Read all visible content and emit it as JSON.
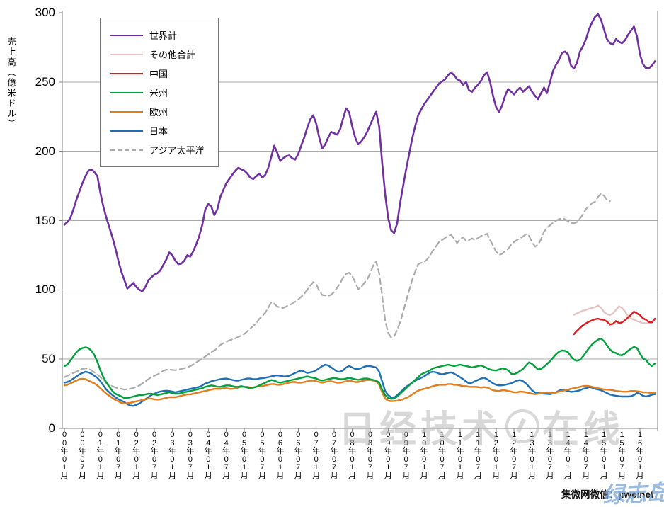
{
  "y_axis": {
    "title": "売上高（億米ドル）",
    "ticks": [
      300,
      250,
      200,
      150,
      100,
      50,
      0
    ]
  },
  "footer": {
    "credit_text": "集微网微信：jiweinet",
    "signature": "绿志岛"
  },
  "watermark": {
    "left": "日经技术",
    "right": "在线",
    "icon": "circle-logo"
  },
  "chart_data": {
    "type": "line",
    "title": "",
    "xlabel": "",
    "ylabel": "売上高（億米ドル）",
    "ylim": [
      0,
      300
    ],
    "grid": "horizontal",
    "legend_position": "upper-left-box",
    "x_unit": "month",
    "x_start": "2000-01",
    "x_tick_labels": [
      "00年01月",
      "00年07月",
      "01年01月",
      "01年07月",
      "02年01月",
      "02年07月",
      "03年01月",
      "03年07月",
      "04年01月",
      "04年07月",
      "05年01月",
      "05年07月",
      "06年01月",
      "06年07月",
      "07年01月",
      "07年07月",
      "08年01月",
      "08年07月",
      "09年01月",
      "09年07月",
      "10年01月",
      "10年07月",
      "11年01月",
      "11年07月",
      "12年01月",
      "12年07月",
      "13年01月",
      "13年07月",
      "14年01月",
      "14年07月",
      "15年01月",
      "15年07月",
      "16年01月"
    ],
    "series": [
      {
        "name": "世界計",
        "name_en": "world-total",
        "color": "#7030A0",
        "dash": "solid",
        "width": 2.6,
        "start_index": 0,
        "values": [
          147,
          149,
          152,
          158,
          165,
          171,
          177,
          182,
          186,
          187,
          185,
          182,
          170,
          160,
          152,
          145,
          138,
          130,
          121,
          113,
          107,
          101,
          103,
          105,
          102,
          100,
          99,
          102,
          107,
          109,
          111,
          112,
          114,
          118,
          122,
          127,
          125,
          121,
          118.5,
          119,
          121,
          125,
          124,
          128,
          133,
          139,
          147,
          158,
          162,
          160,
          154,
          158,
          167,
          172,
          177,
          180,
          183,
          186,
          188,
          187,
          186,
          184,
          181,
          180,
          182,
          184,
          181,
          183,
          188,
          196,
          204,
          199,
          193,
          195,
          196.5,
          197,
          195,
          194,
          198,
          204,
          210,
          217,
          223,
          226,
          220,
          210,
          202,
          205,
          210,
          214,
          213,
          212,
          216,
          224,
          231,
          228,
          218,
          210,
          205,
          207,
          210,
          214,
          219,
          224,
          228.5,
          218,
          192,
          169,
          152,
          143,
          141,
          148,
          163,
          175,
          187,
          198,
          209,
          218,
          226,
          230,
          234,
          237,
          240,
          243,
          246,
          249,
          250.5,
          252,
          255,
          257,
          255,
          252,
          251,
          248,
          250,
          244,
          243,
          246,
          248,
          251,
          255,
          257,
          250,
          240,
          232,
          228.3,
          233,
          240,
          245,
          243,
          241,
          244,
          246,
          243,
          245,
          247,
          243,
          240,
          237.7,
          242,
          246,
          242,
          250,
          258,
          262.4,
          266,
          271,
          272,
          270,
          262,
          259.8,
          264,
          272,
          276,
          281,
          288,
          293,
          297,
          299,
          295,
          288,
          281,
          278,
          277,
          281,
          279,
          278,
          280,
          284,
          287,
          290,
          283,
          270,
          263,
          260,
          260,
          262,
          265
        ]
      },
      {
        "name": "その他合計",
        "name_en": "others-total",
        "color": "#E5C2C0",
        "dash": "solid",
        "width": 2.3,
        "start_index": 170,
        "values": [
          82,
          83,
          84,
          85,
          85.5,
          86.3,
          86.9,
          87.5,
          88.6,
          87,
          84,
          82.5,
          81.8,
          83,
          85.5,
          88.1,
          87,
          84.5,
          81,
          79.5,
          78.5,
          77.5,
          76.7,
          76,
          75.8,
          76,
          76.5,
          79
        ]
      },
      {
        "name": "中国",
        "name_en": "china",
        "color": "#DE1B21",
        "dash": "solid",
        "width": 2.4,
        "start_index": 170,
        "values": [
          68,
          70.5,
          72.5,
          74.5,
          75.8,
          77,
          78,
          78.8,
          79.2,
          78.5,
          78.4,
          77,
          75,
          75.5,
          77.5,
          76,
          76.5,
          78,
          80,
          82,
          84.3,
          83,
          81.8,
          79.5,
          78.4,
          76.7,
          76.5,
          79.2
        ]
      },
      {
        "name": "米州",
        "name_en": "americas",
        "color": "#00A13C",
        "dash": "solid",
        "width": 2.4,
        "start_index": 0,
        "values": [
          45,
          46,
          49,
          52,
          55,
          57,
          58,
          58.5,
          58,
          56,
          53,
          48,
          42,
          37,
          33,
          30,
          27,
          25,
          24,
          23,
          22,
          22,
          22.4,
          23,
          23.5,
          24,
          24,
          24.5,
          25,
          25,
          24.5,
          24,
          24.5,
          25,
          25.5,
          26,
          25.5,
          25,
          25,
          25.5,
          26,
          26.5,
          27,
          27.5,
          28,
          28.5,
          29,
          30,
          30.5,
          31,
          30.7,
          30,
          30,
          30.5,
          31,
          31,
          30.5,
          30,
          30,
          30.5,
          30,
          29.5,
          29,
          29.5,
          30,
          31,
          32,
          33,
          34,
          34.9,
          34.5,
          33.5,
          33,
          33.5,
          34,
          34.5,
          35,
          35.5,
          36,
          36.5,
          37,
          37.5,
          37,
          36.5,
          36,
          35,
          34.5,
          35,
          35.5,
          36,
          36.5,
          36,
          35.5,
          35.5,
          36,
          36.5,
          36,
          35.5,
          35,
          35.5,
          36,
          36,
          35.5,
          35,
          34.5,
          33,
          28,
          24,
          22,
          21.3,
          21.5,
          23,
          25,
          27,
          29,
          31,
          33,
          35,
          37,
          39,
          40,
          41,
          42,
          43.4,
          44,
          44.5,
          45,
          45.5,
          46,
          45.5,
          45,
          45.5,
          46,
          45.5,
          45.1,
          44.5,
          44,
          44.5,
          45,
          45.5,
          44.5,
          43.5,
          42.5,
          42,
          41.8,
          42.5,
          43.4,
          43,
          42,
          39.5,
          39.2,
          40,
          41.5,
          43,
          45.5,
          47.7,
          46.5,
          44.5,
          42.6,
          43,
          44.5,
          46.5,
          48.5,
          51,
          53.5,
          55.4,
          56.2,
          56,
          55,
          52,
          49.5,
          48.9,
          49.5,
          52,
          55,
          58,
          60.5,
          62.5,
          64,
          64.8,
          63,
          60,
          57,
          55,
          54.5,
          53,
          52.8,
          54,
          56,
          57.5,
          58.8,
          58,
          54,
          50.5,
          49.4,
          46.5,
          45.1,
          46.9
        ]
      },
      {
        "name": "欧州",
        "name_en": "europe",
        "color": "#E07D1E",
        "dash": "solid",
        "width": 2.4,
        "start_index": 0,
        "values": [
          31,
          31.5,
          32.5,
          33.5,
          34.5,
          35.5,
          35.8,
          35.5,
          34.5,
          33.5,
          32.5,
          31,
          29,
          27,
          25,
          23.5,
          22,
          20.5,
          19.5,
          18.4,
          18,
          18.2,
          18.5,
          19,
          19.5,
          20,
          20.5,
          21,
          21.5,
          21.5,
          21,
          20.8,
          21,
          21.5,
          22,
          22.5,
          22.5,
          22.5,
          23,
          23.5,
          24,
          24.5,
          24.5,
          25,
          25.5,
          26,
          26.5,
          27,
          27.5,
          28,
          28.5,
          28.5,
          28.5,
          29,
          29,
          28.5,
          28.5,
          29,
          29.5,
          30,
          30,
          30,
          29.5,
          29.5,
          30,
          30.5,
          30.5,
          31,
          31.5,
          32,
          32,
          31.5,
          31.5,
          32,
          32.5,
          33,
          33.5,
          33.5,
          33,
          33,
          33.5,
          34,
          34.5,
          34.5,
          34,
          33.5,
          33,
          33.5,
          34,
          34,
          33.5,
          33,
          33,
          33.5,
          34,
          34.5,
          34,
          33.5,
          33.5,
          34,
          34.5,
          35,
          35,
          34.5,
          34,
          31.5,
          26,
          21.5,
          20,
          19.6,
          19.8,
          20,
          20.5,
          21,
          22,
          23,
          24.5,
          26,
          27.2,
          28,
          28.5,
          29,
          29.8,
          30.5,
          31,
          31.5,
          31.5,
          31.5,
          32,
          32,
          31.5,
          31.5,
          31,
          30.5,
          30.5,
          30,
          30,
          30,
          29.8,
          29.5,
          29.8,
          29.5,
          28.5,
          27.5,
          27.2,
          27,
          27.5,
          27.5,
          27,
          26.5,
          26,
          26,
          26.5,
          26.4,
          26,
          25.5,
          25,
          24.7,
          25,
          25.5,
          25.8,
          26,
          25.8,
          25.5,
          25.8,
          26.5,
          27,
          27.5,
          28,
          28.5,
          29,
          29.5,
          30,
          30.5,
          30.7,
          30.5,
          30,
          29.5,
          29,
          28.5,
          28.1,
          28,
          27.8,
          27.5,
          27,
          26.8,
          26.5,
          26.4,
          26.5,
          27,
          27,
          26.8,
          26.5,
          26,
          26,
          25.8,
          25.6,
          25.8
        ]
      },
      {
        "name": "日本",
        "name_en": "japan",
        "color": "#1F6FB4",
        "dash": "solid",
        "width": 2.4,
        "start_index": 0,
        "values": [
          33,
          33.5,
          34.5,
          36,
          37.5,
          39,
          40,
          40.9,
          40.5,
          39.5,
          38,
          36.5,
          34,
          31,
          28,
          26,
          24,
          22.5,
          21,
          20,
          19,
          17.5,
          16.5,
          16.2,
          17,
          18,
          19.5,
          21,
          22.5,
          24,
          25,
          26,
          26.5,
          27,
          27.2,
          27,
          26.5,
          26,
          26.5,
          27,
          27.5,
          28,
          28.5,
          29,
          29.5,
          30,
          31,
          32.4,
          33,
          34,
          34.5,
          35,
          35.5,
          35.8,
          36,
          35.5,
          35,
          34.5,
          34.5,
          35,
          35.5,
          36,
          36,
          35.5,
          35.5,
          36,
          36.3,
          36.6,
          37,
          37.5,
          38,
          38.3,
          38,
          37.5,
          37.5,
          38,
          39,
          40,
          41,
          41.8,
          41,
          40,
          40.5,
          41,
          42,
          43.5,
          45,
          46,
          45.5,
          44,
          42.5,
          41,
          40.9,
          42,
          44,
          45.1,
          44,
          43,
          43,
          43.5,
          44.5,
          45.1,
          45,
          44.5,
          44,
          41,
          34,
          27,
          24,
          22.5,
          22.1,
          24,
          26,
          28,
          30,
          31.5,
          33,
          34.5,
          35.5,
          36.5,
          37.5,
          39,
          40.5,
          40.9,
          40.5,
          39.5,
          39,
          39.5,
          40,
          40.5,
          39.5,
          38.3,
          37,
          35.5,
          34,
          32.4,
          33,
          34,
          35,
          36,
          36.6,
          35.5,
          34,
          32.5,
          31.5,
          31,
          31.2,
          31.5,
          32,
          32.5,
          33.5,
          34.5,
          34.9,
          34,
          32.4,
          30,
          27.5,
          26,
          25.6,
          25.2,
          25,
          24.9,
          24.7,
          25.2,
          26,
          27.2,
          28,
          27.5,
          27,
          26.4,
          26.5,
          27,
          27.5,
          28.5,
          29,
          29.8,
          29.5,
          28.5,
          28.1,
          27.5,
          26.5,
          25.5,
          24.5,
          23.9,
          23.5,
          23.2,
          23,
          23,
          23,
          23.2,
          24,
          25.6,
          25,
          23.5,
          23,
          23.5,
          24.3,
          24.7
        ]
      },
      {
        "name": "アジア太平洋",
        "name_en": "asia-pacific",
        "color": "#ABABAB",
        "dash": "dashed",
        "width": 2.2,
        "start_index": 0,
        "values": [
          37,
          38,
          39,
          40,
          41,
          42,
          43,
          43.5,
          43,
          42,
          40.5,
          39,
          37,
          35,
          33,
          31.5,
          30.5,
          29.5,
          29,
          28.5,
          28,
          28.2,
          28.6,
          29.2,
          30,
          31,
          32.4,
          34,
          35.5,
          37,
          38,
          39,
          40,
          41.7,
          42.3,
          42.5,
          42.2,
          42,
          42.4,
          43,
          43.5,
          44.2,
          45,
          46.2,
          47.7,
          49,
          50.5,
          52,
          53.5,
          55,
          56.2,
          58,
          60.2,
          61.5,
          62.5,
          63.5,
          64.3,
          65,
          66,
          67,
          68.2,
          70,
          72,
          74,
          76,
          79,
          81,
          83.5,
          87,
          91,
          90,
          88,
          87.2,
          86.9,
          88,
          89,
          90,
          91.5,
          93,
          95,
          97,
          100,
          103,
          105.6,
          104,
          99.5,
          96.3,
          96,
          95.6,
          96.5,
          98.5,
          101.5,
          105,
          109,
          111.5,
          112.4,
          110,
          105.5,
          100.5,
          102,
          104.8,
          107.5,
          112,
          117.5,
          120.5,
          112,
          96,
          78,
          69,
          65.6,
          66.5,
          71,
          76.7,
          84,
          92,
          99.7,
          107,
          113,
          118.4,
          119.5,
          120.1,
          122,
          125,
          128.5,
          131.5,
          134.6,
          136,
          137.5,
          139,
          139.7,
          137,
          133.8,
          136.5,
          138,
          135.5,
          136,
          137.1,
          136,
          137.5,
          138.8,
          139.5,
          140.5,
          136,
          132,
          127.5,
          125.2,
          126,
          128,
          129.5,
          132.5,
          134.6,
          136,
          137.2,
          138.5,
          140.2,
          139,
          134.5,
          131.2,
          132.5,
          136.5,
          142,
          144.8,
          146.5,
          148.5,
          149.9,
          151,
          151.6,
          151,
          149.5,
          148.2,
          148,
          149,
          151.5,
          154.5,
          158.4,
          160.5,
          162.5,
          163.6,
          167,
          169.5,
          168,
          165,
          164
        ]
      }
    ]
  }
}
